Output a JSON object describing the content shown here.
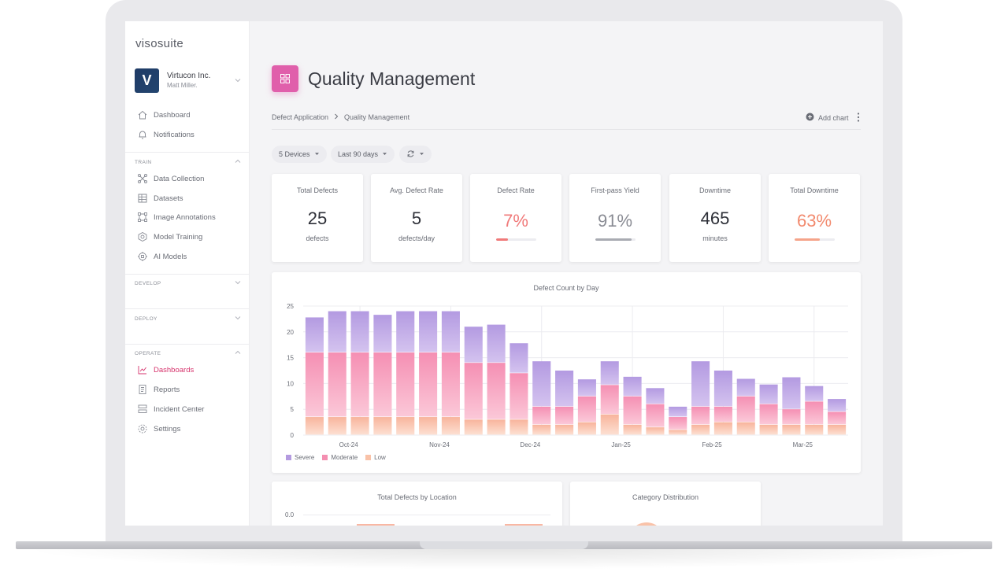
{
  "app": {
    "logo": "visosuite"
  },
  "org": {
    "initial": "V",
    "name": "Virtucon Inc.",
    "user": "Matt Miller."
  },
  "sidebar": {
    "top_items": [
      {
        "label": "Dashboard",
        "icon": "home-icon"
      },
      {
        "label": "Notifications",
        "icon": "bell-icon"
      }
    ],
    "sections": {
      "train": {
        "title": "TRAIN",
        "items": [
          {
            "label": "Data Collection",
            "icon": "data-collection-icon"
          },
          {
            "label": "Datasets",
            "icon": "datasets-icon"
          },
          {
            "label": "Image Annotations",
            "icon": "annotation-icon"
          },
          {
            "label": "Model Training",
            "icon": "model-training-icon"
          },
          {
            "label": "AI Models",
            "icon": "ai-models-icon"
          }
        ]
      },
      "develop": {
        "title": "DEVELOP"
      },
      "deploy": {
        "title": "DEPLOY"
      },
      "operate": {
        "title": "OPERATE",
        "items": [
          {
            "label": "Dashboards",
            "icon": "dashboards-icon",
            "active": true
          },
          {
            "label": "Reports",
            "icon": "reports-icon"
          },
          {
            "label": "Incident Center",
            "icon": "incident-center-icon"
          },
          {
            "label": "Settings",
            "icon": "gear-icon"
          }
        ]
      }
    }
  },
  "page": {
    "title": "Quality Management",
    "breadcrumb": [
      "Defect Application",
      "Quality Management"
    ],
    "add_chart": "Add chart"
  },
  "filters": {
    "devices": "5 Devices",
    "range": "Last 90 days"
  },
  "kpis": [
    {
      "label": "Total Defects",
      "value": "25",
      "unit": "defects"
    },
    {
      "label": "Avg. Defect Rate",
      "value": "5",
      "unit": "defects/day"
    },
    {
      "label": "Defect Rate",
      "value": "7%",
      "progress": 0.3,
      "color": "#f07a7a"
    },
    {
      "label": "First-pass Yield",
      "value": "91%",
      "progress": 0.91,
      "color": "#a9abb2"
    },
    {
      "label": "Downtime",
      "value": "465",
      "unit": "minutes"
    },
    {
      "label": "Total Downtime",
      "value": "63%",
      "progress": 0.63,
      "color": "#f5a48a"
    }
  ],
  "colors": {
    "severe": "#b49be0",
    "moderate": "#f48fb1",
    "low": "#f9c2a8",
    "accent": "#d6336c",
    "title_icon": "#e05fab"
  },
  "chart_data": {
    "type": "bar",
    "stacked": true,
    "title": "Defect Count by Day",
    "ylim": [
      0,
      25
    ],
    "yticks": [
      0,
      5,
      10,
      15,
      20,
      25
    ],
    "x_tick_labels": [
      "Oct-24",
      "Nov-24",
      "Dec-24",
      "Jan-25",
      "Feb-25",
      "Mar-25"
    ],
    "x_tick_positions": [
      2.5,
      6.5,
      10.5,
      14.5,
      18.5,
      22.5
    ],
    "legend_position": "bottom-left",
    "series": [
      {
        "name": "Low",
        "values": [
          3.5,
          3.5,
          3.5,
          3.5,
          3.5,
          3.5,
          3.5,
          3,
          3,
          3,
          2,
          2,
          2.5,
          4,
          2,
          1.5,
          1,
          2,
          2.5,
          2.5,
          2,
          2,
          2,
          2
        ]
      },
      {
        "name": "Moderate",
        "values": [
          12.5,
          12.5,
          12.5,
          12.5,
          12.5,
          12.5,
          12.5,
          11,
          11,
          9,
          3.5,
          3.5,
          5,
          5.7,
          5.5,
          4.5,
          2.5,
          3.5,
          3,
          5,
          4,
          3,
          4.5,
          2.5
        ]
      },
      {
        "name": "Severe",
        "values": [
          6.8,
          8,
          8,
          7.3,
          8,
          8,
          8,
          7,
          7.4,
          5.8,
          8.8,
          7,
          3.3,
          4.6,
          3.8,
          3.1,
          2,
          8.8,
          7,
          3.4,
          3.8,
          6.2,
          3,
          2.5
        ]
      }
    ]
  },
  "bottom_cards": {
    "location": {
      "title": "Total Defects by Location",
      "first_tick": "0.0"
    },
    "category": {
      "title": "Category Distribution"
    }
  }
}
